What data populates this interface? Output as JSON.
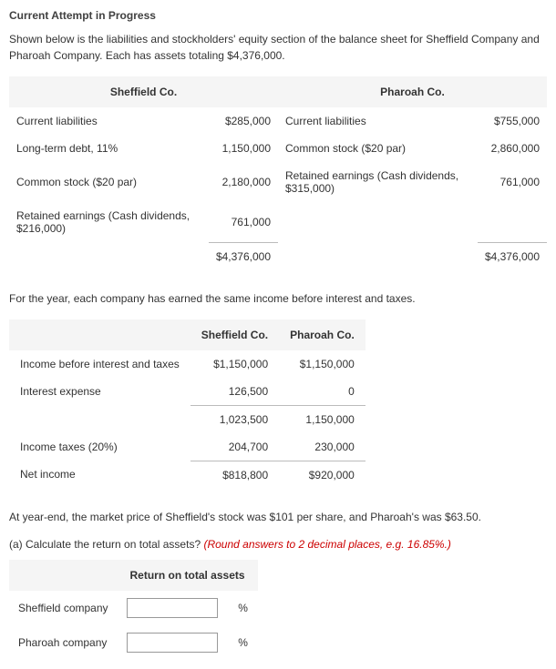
{
  "title": "Current Attempt in Progress",
  "intro": "Shown below is the liabilities and stockholders' equity section of the balance sheet for Sheffield Company and Pharoah Company. Each has assets totaling $4,376,000.",
  "balance": {
    "header_left": "Sheffield Co.",
    "header_right": "Pharoah Co.",
    "left_rows": [
      {
        "label": "Current liabilities",
        "value": "$285,000"
      },
      {
        "label": "Long-term debt, 11%",
        "value": "1,150,000"
      },
      {
        "label": "Common stock ($20 par)",
        "value": "2,180,000"
      },
      {
        "label": "Retained earnings (Cash dividends, $216,000)",
        "value": "761,000"
      }
    ],
    "left_total": "$4,376,000",
    "right_rows": [
      {
        "label": "Current liabilities",
        "value": "$755,000"
      },
      {
        "label": "Common stock ($20 par)",
        "value": "2,860,000"
      },
      {
        "label": "Retained earnings (Cash dividends, $315,000)",
        "value": "761,000"
      }
    ],
    "right_total": "$4,376,000"
  },
  "mid_text": "For the year, each company has earned the same income before interest and taxes.",
  "income": {
    "col1": "Sheffield Co.",
    "col2": "Pharoah Co.",
    "rows": [
      {
        "label": "Income before interest and taxes",
        "v1": "$1,150,000",
        "v2": "$1,150,000"
      },
      {
        "label": "Interest expense",
        "v1": "126,500",
        "v2": "0"
      }
    ],
    "sub": {
      "v1": "1,023,500",
      "v2": "1,150,000"
    },
    "tax": {
      "label": "Income taxes (20%)",
      "v1": "204,700",
      "v2": "230,000"
    },
    "net": {
      "label": "Net income",
      "v1": "$818,800",
      "v2": "$920,000"
    }
  },
  "closing_text": "At year-end, the market price of Sheffield's stock was $101 per share, and Pharoah's was $63.50.",
  "question_prefix": "(a) Calculate the return on total assets? ",
  "question_hint": "(Round answers to 2 decimal places, e.g. 16.85%.)",
  "roa": {
    "header": "Return on total assets",
    "row1": "Sheffield company",
    "row2": "Pharoah company",
    "unit": "%"
  }
}
